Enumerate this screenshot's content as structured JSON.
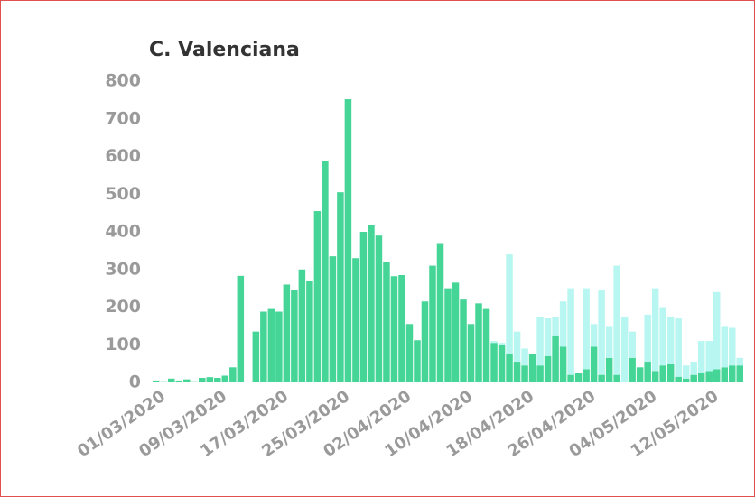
{
  "chart_data": {
    "type": "stacked_bar",
    "title": "C. Valenciana",
    "categories": [
      null,
      null,
      "01/03/2020",
      null,
      null,
      null,
      null,
      null,
      null,
      null,
      "09/03/2020",
      null,
      null,
      null,
      null,
      null,
      null,
      null,
      "17/03/2020",
      null,
      null,
      null,
      null,
      null,
      null,
      null,
      "25/03/2020",
      null,
      null,
      null,
      null,
      null,
      null,
      null,
      "02/04/2020",
      null,
      null,
      null,
      null,
      null,
      null,
      null,
      "10/04/2020",
      null,
      null,
      null,
      null,
      null,
      null,
      null,
      "18/04/2020",
      null,
      null,
      null,
      null,
      null,
      null,
      null,
      "26/04/2020",
      null,
      null,
      null,
      null,
      null,
      null,
      null,
      "04/05/2020",
      null,
      null,
      null,
      null,
      null,
      null,
      null,
      "12/05/2020",
      null,
      null,
      null,
      null
    ],
    "series": [
      {
        "color": "#45d597",
        "values": [
          2,
          5,
          3,
          10,
          5,
          8,
          3,
          12,
          14,
          12,
          18,
          40,
          283,
          0,
          135,
          188,
          195,
          188,
          260,
          245,
          300,
          270,
          455,
          588,
          335,
          505,
          752,
          330,
          400,
          418,
          390,
          320,
          282,
          285,
          155,
          112,
          215,
          310,
          370,
          250,
          265,
          220,
          155,
          210,
          195,
          105,
          100,
          75,
          55,
          45,
          75,
          45,
          70,
          125,
          95,
          20,
          25,
          35,
          95,
          20,
          65,
          20,
          0,
          65,
          40,
          55,
          30,
          45,
          50,
          15,
          10,
          20,
          25,
          30,
          35,
          40,
          45,
          45,
          0
        ]
      },
      {
        "color": "#b8f6f1",
        "values": [
          0,
          0,
          0,
          0,
          0,
          0,
          0,
          0,
          0,
          0,
          0,
          0,
          0,
          0,
          0,
          0,
          0,
          0,
          0,
          0,
          0,
          0,
          0,
          0,
          0,
          0,
          0,
          0,
          0,
          0,
          0,
          0,
          0,
          0,
          0,
          0,
          0,
          0,
          0,
          0,
          0,
          0,
          0,
          0,
          0,
          5,
          5,
          265,
          80,
          45,
          0,
          130,
          100,
          50,
          120,
          230,
          0,
          215,
          60,
          225,
          85,
          290,
          175,
          70,
          0,
          125,
          220,
          155,
          125,
          155,
          35,
          35,
          85,
          80,
          205,
          110,
          100,
          20,
          0
        ]
      }
    ],
    "ylim": [
      0,
      800
    ],
    "yticks": [
      0,
      100,
      200,
      300,
      400,
      500,
      600,
      700,
      800
    ]
  }
}
